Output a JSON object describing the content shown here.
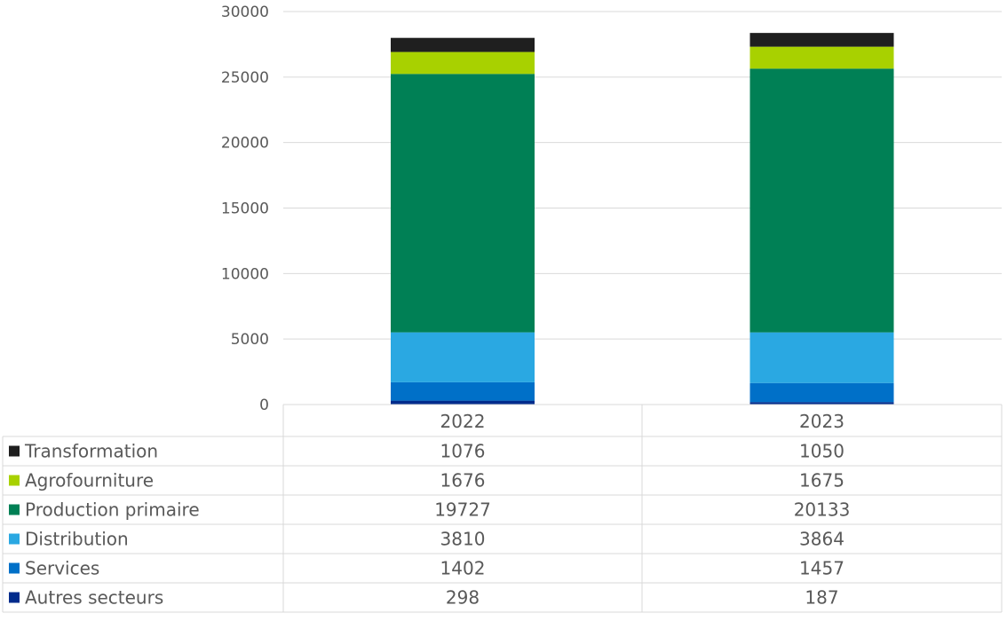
{
  "chart_data": {
    "type": "bar",
    "stacked": true,
    "categories": [
      "2022",
      "2023"
    ],
    "series": [
      {
        "name": "Autres secteurs",
        "color": "#002B8C",
        "values": [
          298,
          187
        ]
      },
      {
        "name": "Services",
        "color": "#0070C8",
        "values": [
          1402,
          1457
        ]
      },
      {
        "name": "Distribution",
        "color": "#2AA8E2",
        "values": [
          3810,
          3864
        ]
      },
      {
        "name": "Production primaire",
        "color": "#008055",
        "values": [
          19727,
          20133
        ]
      },
      {
        "name": "Agrofourniture",
        "color": "#A8D100",
        "values": [
          1676,
          1675
        ]
      },
      {
        "name": "Transformation",
        "color": "#1F1F1F",
        "values": [
          1076,
          1050
        ]
      }
    ],
    "table_row_order": [
      "Transformation",
      "Agrofourniture",
      "Production primaire",
      "Distribution",
      "Services",
      "Autres secteurs"
    ],
    "y_ticks": [
      "0",
      "5000",
      "10000",
      "15000",
      "20000",
      "25000",
      "30000"
    ],
    "ylim": [
      0,
      30000
    ],
    "grid": true,
    "legend": "data-table-below",
    "title": "",
    "xlabel": "",
    "ylabel": ""
  }
}
